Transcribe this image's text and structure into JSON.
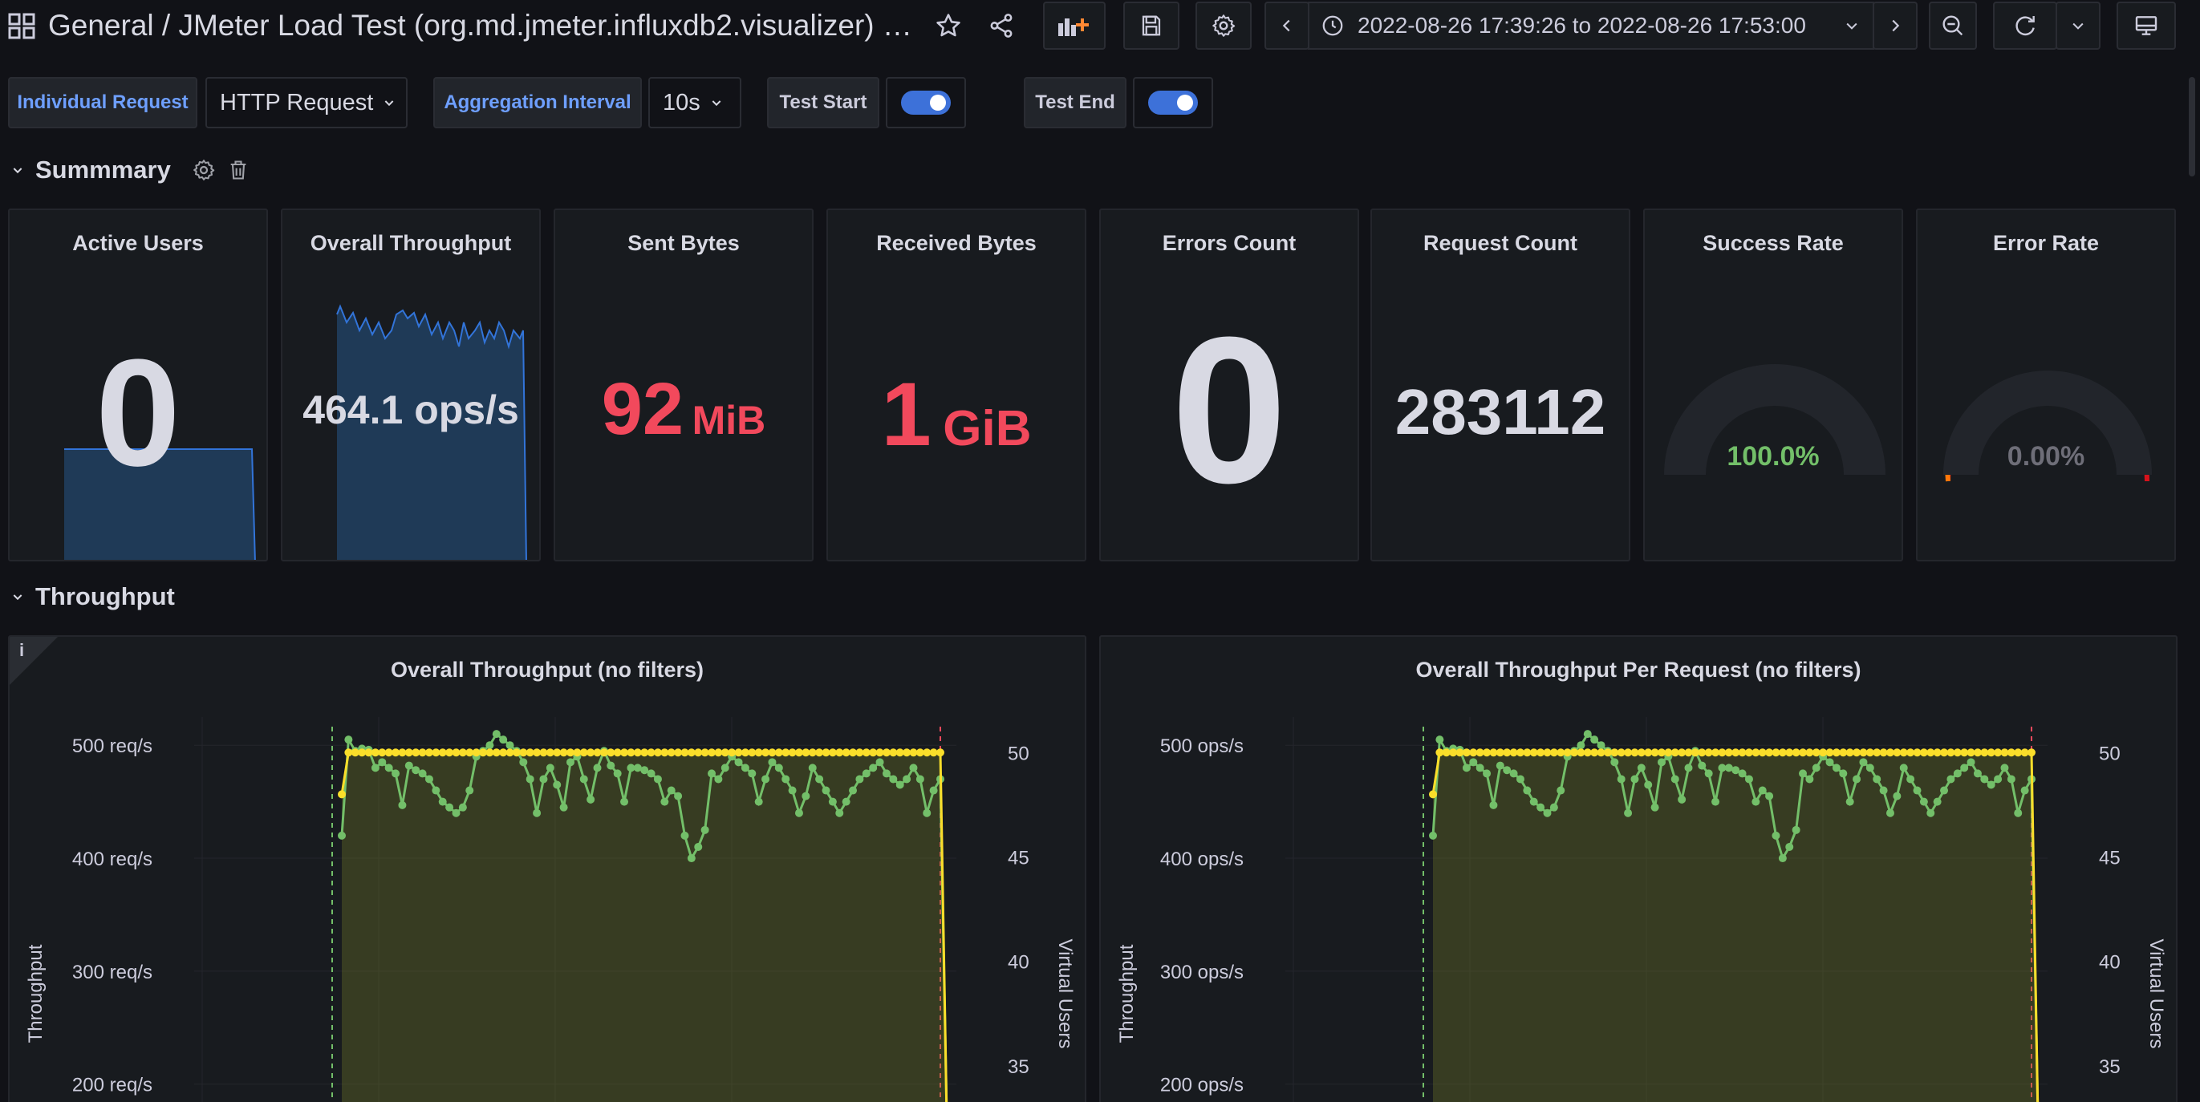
{
  "header": {
    "breadcrumb": "General  / JMeter Load Test (org.md.jmeter.influxdb2.visualizer) - inf...",
    "time_range": "2022-08-26 17:39:26 to 2022-08-26 17:53:00"
  },
  "variables": {
    "individual_request_label": "Individual Request",
    "individual_request_value": "HTTP Request",
    "aggregation_label": "Aggregation Interval",
    "aggregation_value": "10s",
    "test_start_label": "Test Start",
    "test_end_label": "Test End",
    "test_start_on": true,
    "test_end_on": true
  },
  "rows": {
    "summary": "Summmary",
    "throughput": "Throughput"
  },
  "stats": [
    {
      "title": "Active Users",
      "value": "0"
    },
    {
      "title": "Overall Throughput",
      "value": "464.1 ops/s"
    },
    {
      "title": "Sent Bytes",
      "value": "92",
      "unit": "MiB"
    },
    {
      "title": "Received Bytes",
      "value": "1",
      "unit": "GiB"
    },
    {
      "title": "Errors Count",
      "value": "0"
    },
    {
      "title": "Request Count",
      "value": "283112"
    },
    {
      "title": "Success Rate",
      "value": "100.0%"
    },
    {
      "title": "Error Rate",
      "value": "0.00%"
    }
  ],
  "colors": {
    "background": "#111217",
    "panel": "#181b1f",
    "accent_blue": "#3d71d9",
    "red_value": "#f2495c",
    "green": "#73bf69",
    "yellow": "#fade2a",
    "gauge_red": "#d6121b"
  },
  "charts": {
    "info_icon_label": "i",
    "left": {
      "title": "Overall Throughput (no filters)",
      "y_left_label": "Throughput",
      "y_right_label": "Virtual Users",
      "y_left_ticks": [
        "500 req/s",
        "400 req/s",
        "300 req/s",
        "200 req/s"
      ],
      "y_right_ticks": [
        "50",
        "45",
        "40",
        "35"
      ]
    },
    "right": {
      "title": "Overall Throughput Per Request (no filters)",
      "y_left_label": "Throughput",
      "y_right_label": "Virtual Users",
      "y_left_ticks": [
        "500 ops/s",
        "400 ops/s",
        "300 ops/s",
        "200 ops/s"
      ],
      "y_right_ticks": [
        "50",
        "45",
        "40",
        "35"
      ]
    }
  },
  "chart_data": [
    {
      "type": "line",
      "title": "Overall Throughput (no filters)",
      "ylabel": "Throughput",
      "y2label": "Virtual Users",
      "ylim": [
        170,
        525
      ],
      "y2lim": [
        32.5,
        51.7
      ],
      "series": [
        {
          "values": [
            420,
            505,
            495,
            497,
            496,
            480,
            485,
            480,
            475,
            447,
            482,
            478,
            475,
            470,
            460,
            450,
            445,
            440,
            445,
            460,
            490,
            495,
            500,
            510,
            505,
            500,
            495,
            485,
            470,
            440,
            470,
            480,
            465,
            445,
            485,
            490,
            470,
            452,
            480,
            495,
            482,
            475,
            450,
            480,
            480,
            478,
            475,
            470,
            450,
            460,
            455,
            420,
            400,
            410,
            425,
            475,
            470,
            480,
            490,
            485,
            480,
            475,
            450,
            470,
            485,
            480,
            470,
            460,
            440,
            455,
            480,
            470,
            460,
            450,
            440,
            450,
            460,
            470,
            475,
            480,
            485,
            475,
            470,
            465,
            470,
            480,
            470,
            440,
            460,
            470
          ]
        },
        {
          "values": [
            48,
            50,
            50,
            50,
            50,
            50,
            50,
            50,
            50,
            50,
            50,
            50,
            50,
            50,
            50,
            50,
            50,
            50,
            50,
            50,
            50,
            50,
            50,
            50,
            50,
            50,
            50,
            50,
            50,
            50,
            50,
            50,
            50,
            50,
            50,
            50,
            50,
            50,
            50,
            50,
            50,
            50,
            50,
            50,
            50,
            50,
            50,
            50,
            50,
            50,
            50,
            50,
            50,
            50,
            50,
            50,
            50,
            50,
            50,
            50,
            50,
            50,
            50,
            50,
            50,
            50,
            50,
            50,
            50,
            50,
            50,
            50,
            50,
            50,
            50,
            50,
            50,
            50,
            50,
            50,
            50,
            50,
            50,
            50,
            50,
            50,
            50,
            50,
            50,
            50
          ]
        }
      ]
    },
    {
      "type": "line",
      "title": "Overall Throughput Per Request (no filters)",
      "ylabel": "Throughput",
      "y2label": "Virtual Users",
      "ylim": [
        170,
        525
      ],
      "y2lim": [
        32.5,
        51.7
      ],
      "series": [
        {
          "values": [
            420,
            505,
            495,
            497,
            496,
            480,
            485,
            480,
            475,
            447,
            482,
            478,
            475,
            470,
            460,
            450,
            445,
            440,
            445,
            460,
            490,
            495,
            500,
            510,
            505,
            500,
            495,
            485,
            470,
            440,
            470,
            480,
            465,
            445,
            485,
            490,
            470,
            452,
            480,
            495,
            482,
            475,
            450,
            480,
            480,
            478,
            475,
            470,
            450,
            460,
            455,
            420,
            400,
            410,
            425,
            475,
            470,
            480,
            490,
            485,
            480,
            475,
            450,
            470,
            485,
            480,
            470,
            460,
            440,
            455,
            480,
            470,
            460,
            450,
            440,
            450,
            460,
            470,
            475,
            480,
            485,
            475,
            470,
            465,
            470,
            480,
            470,
            440,
            460,
            470
          ]
        },
        {
          "values": [
            48,
            50,
            50,
            50,
            50,
            50,
            50,
            50,
            50,
            50,
            50,
            50,
            50,
            50,
            50,
            50,
            50,
            50,
            50,
            50,
            50,
            50,
            50,
            50,
            50,
            50,
            50,
            50,
            50,
            50,
            50,
            50,
            50,
            50,
            50,
            50,
            50,
            50,
            50,
            50,
            50,
            50,
            50,
            50,
            50,
            50,
            50,
            50,
            50,
            50,
            50,
            50,
            50,
            50,
            50,
            50,
            50,
            50,
            50,
            50,
            50,
            50,
            50,
            50,
            50,
            50,
            50,
            50,
            50,
            50,
            50,
            50,
            50,
            50,
            50,
            50,
            50,
            50,
            50,
            50,
            50,
            50,
            50,
            50,
            50,
            50,
            50,
            50,
            50,
            50
          ]
        }
      ]
    }
  ]
}
